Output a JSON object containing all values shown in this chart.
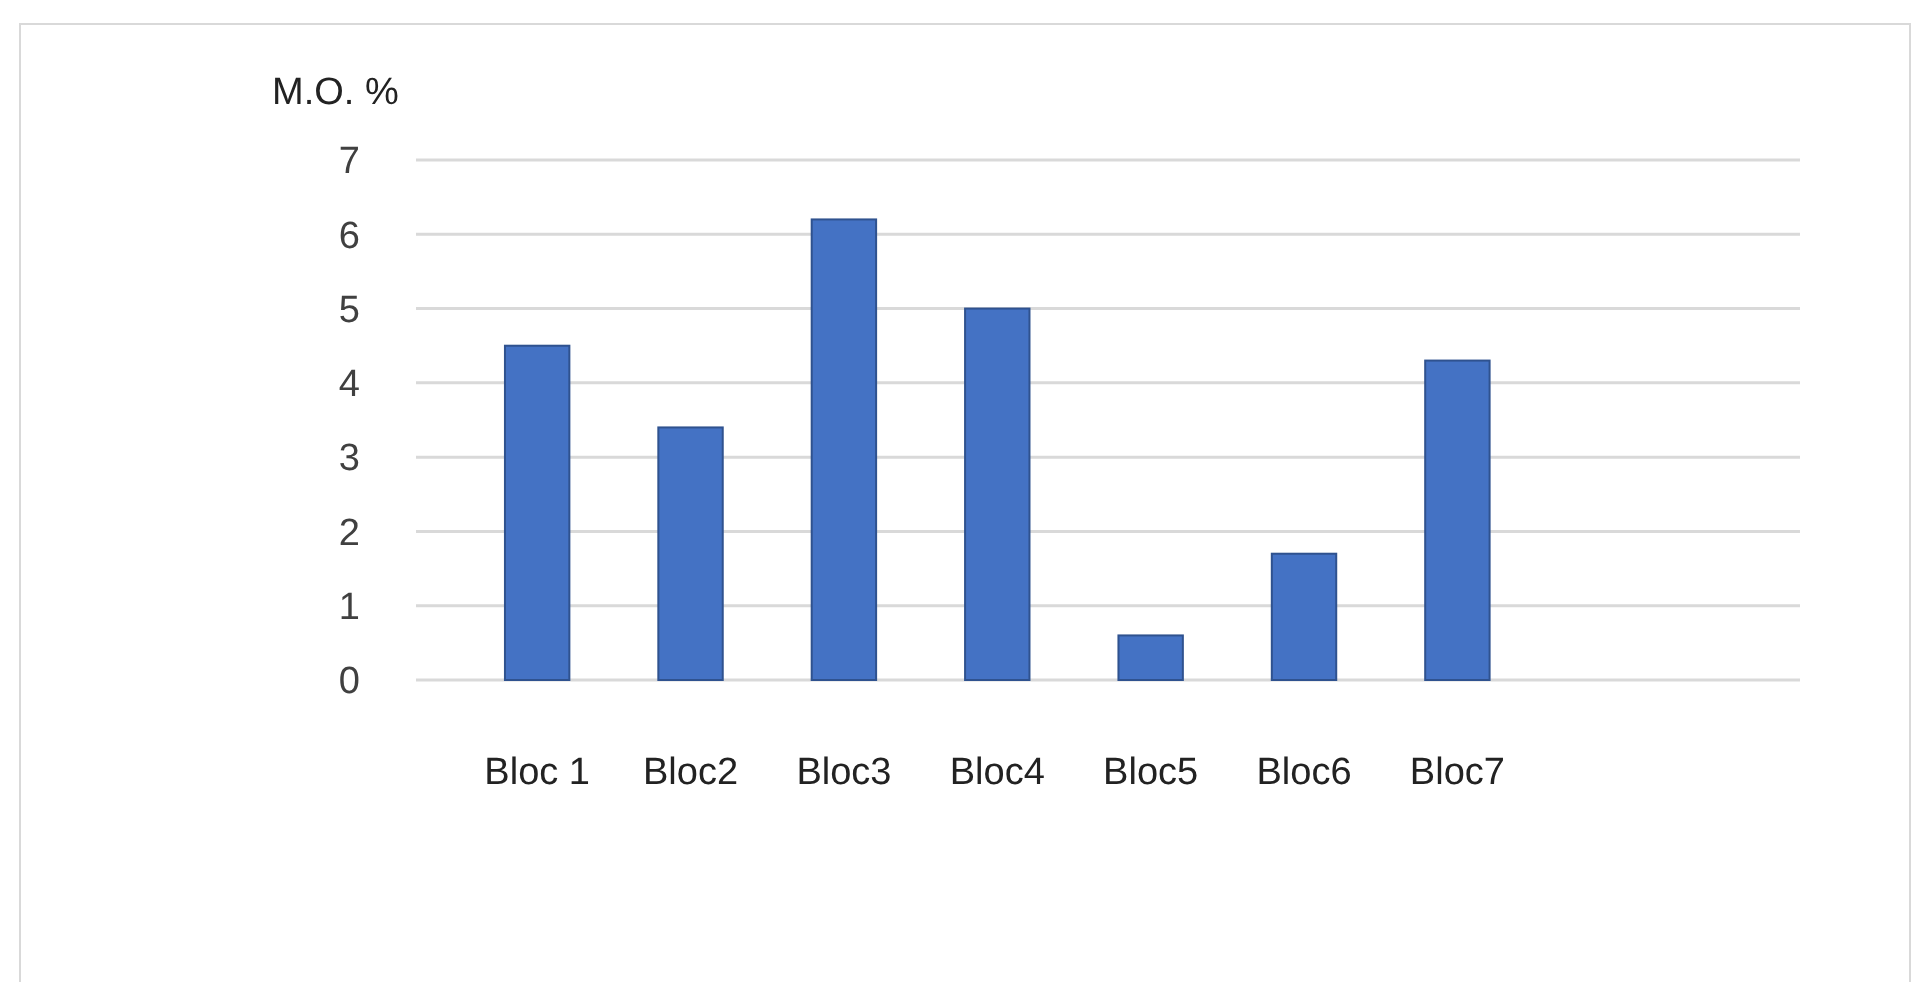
{
  "chart_data": {
    "type": "bar",
    "ylabel": "M.O. %",
    "categories": [
      "Bloc 1",
      "Bloc2",
      "Bloc3",
      "Bloc4",
      "Bloc5",
      "Bloc6",
      "Bloc7"
    ],
    "values": [
      4.5,
      3.4,
      6.2,
      5.0,
      0.6,
      1.7,
      4.3
    ],
    "color": "#4472c4",
    "ylim": [
      0,
      7
    ],
    "yticks": [
      0,
      1,
      2,
      3,
      4,
      5,
      6,
      7
    ],
    "grid": "y"
  }
}
